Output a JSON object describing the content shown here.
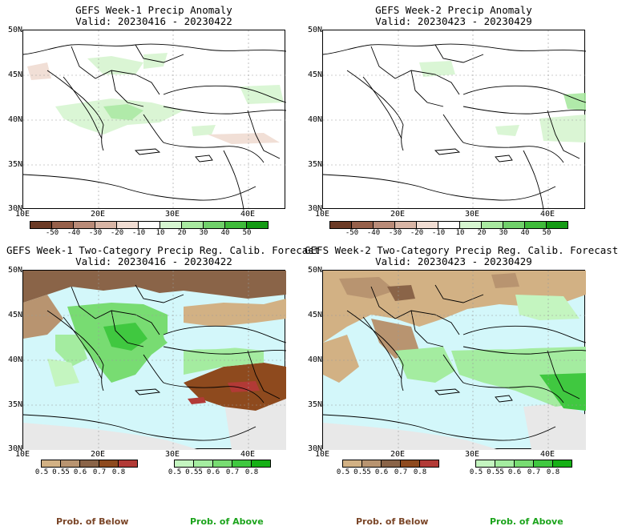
{
  "panels": [
    {
      "title": "GEFS Week-1 Precip Anomaly",
      "valid": "Valid: 20230416 - 20230422"
    },
    {
      "title": "GEFS Week-2 Precip Anomaly",
      "valid": "Valid: 20230423 - 20230429"
    },
    {
      "title": "GEFS Week-1 Two-Category Precip Reg. Calib. Forecast",
      "valid": "Valid: 20230416 - 20230422"
    },
    {
      "title": "GEFS Week-2 Two-Category Precip Reg. Calib. Forecast",
      "valid": "Valid: 20230423 - 20230429"
    }
  ],
  "lat_labels": [
    "50N",
    "45N",
    "40N",
    "35N",
    "30N"
  ],
  "lon_labels": [
    "10E",
    "20E",
    "30E",
    "40E"
  ],
  "anomaly_colorbar": {
    "labels": [
      "-50",
      "-40",
      "-30",
      "-20",
      "-10",
      "10",
      "20",
      "30",
      "40",
      "50"
    ],
    "colors": [
      "#6b3a25",
      "#96604a",
      "#b98b78",
      "#d8b5a5",
      "#f0dcd2",
      "#ffffff",
      "#d6f5d0",
      "#a8e8a0",
      "#70d06a",
      "#3fba3a",
      "#149a14"
    ]
  },
  "below_colorbar": {
    "labels": [
      "0.5",
      "0.55",
      "0.6",
      "0.7",
      "0.8"
    ],
    "colors": [
      "#d2b184",
      "#b89470",
      "#8a6448",
      "#8e4a1e",
      "#b23a36"
    ]
  },
  "above_colorbar": {
    "labels": [
      "0.5",
      "0.55",
      "0.6",
      "0.7",
      "0.8"
    ],
    "colors": [
      "#c4f5c0",
      "#a4eca0",
      "#78dc72",
      "#40c840",
      "#16b016"
    ]
  },
  "legend": {
    "below": "Prob. of Below",
    "above": "Prob. of Above"
  },
  "colors": {
    "sea": "#d3f7fa",
    "land_gray": "#e8e8e8",
    "tan": "#d2b184",
    "brown": "#8e4a1e",
    "green": "#78dc72"
  }
}
